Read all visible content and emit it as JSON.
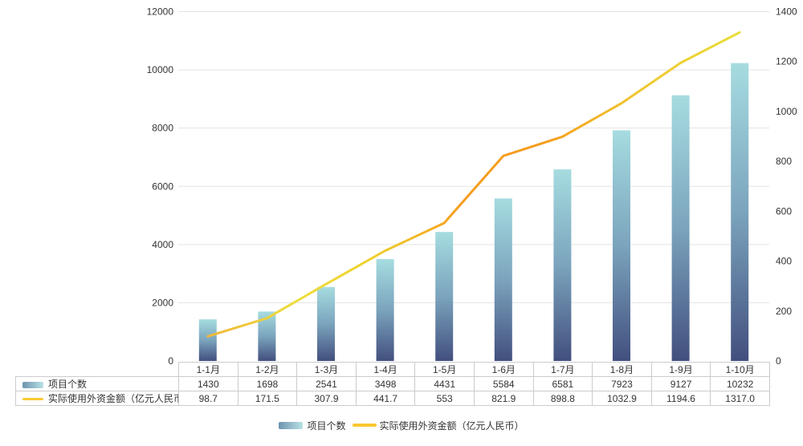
{
  "chart_data": {
    "type": "bar+line",
    "categories": [
      "1-1月",
      "1-2月",
      "1-3月",
      "1-4月",
      "1-5月",
      "1-6月",
      "1-7月",
      "1-8月",
      "1-9月",
      "1-10月"
    ],
    "series": [
      {
        "name": "项目个数",
        "type": "bar",
        "axis": "left",
        "values": [
          1430,
          1698,
          2541,
          3498,
          4431,
          5584,
          6581,
          7923,
          9127,
          10232
        ],
        "labels": [
          "1430",
          "1698",
          "2541",
          "3498",
          "4431",
          "5584",
          "6581",
          "7923",
          "9127",
          "10232"
        ]
      },
      {
        "name": "实际使用外资金额（亿元人民币）",
        "type": "line",
        "axis": "right",
        "values": [
          98.7,
          171.5,
          307.9,
          441.7,
          553,
          821.9,
          898.8,
          1032.9,
          1194.6,
          1317.0
        ],
        "labels": [
          "98.7",
          "171.5",
          "307.9",
          "441.7",
          "553",
          "821.9",
          "898.8",
          "1032.9",
          "1194.6",
          "1317.0"
        ]
      }
    ],
    "left_axis": {
      "min": 0,
      "max": 12000,
      "step": 2000,
      "tick_labels": [
        "0",
        "2000",
        "4000",
        "6000",
        "8000",
        "10000",
        "12000"
      ]
    },
    "right_axis": {
      "min": 0,
      "max": 1400,
      "step": 200,
      "tick_labels": [
        "0",
        "200",
        "400",
        "600",
        "800",
        "1000",
        "1200",
        "1400"
      ]
    },
    "grid": true,
    "legend_position": "bottom",
    "colors": {
      "bar_gradient": [
        {
          "offset": 0,
          "color": "#A6DCE0"
        },
        {
          "offset": 0.5,
          "color": "#7BA4BD"
        },
        {
          "offset": 1,
          "color": "#424F7E"
        }
      ],
      "line_gradient": [
        {
          "offset": 0,
          "color": "#F2A93C"
        },
        {
          "offset": 0.2,
          "color": "#EDDE3A"
        },
        {
          "offset": 0.33,
          "color": "#EFD02F"
        },
        {
          "offset": 0.48,
          "color": "#F59D1E"
        },
        {
          "offset": 0.62,
          "color": "#F59D1E"
        },
        {
          "offset": 0.78,
          "color": "#EFC72F"
        },
        {
          "offset": 1,
          "color": "#E8E43D"
        }
      ],
      "legend_bar_left": "#6E94B0",
      "legend_bar_right": "#B7E2E4",
      "legend_line": "#FAC832",
      "grid_line": "#E3E3E3",
      "axis_text": "#333333",
      "table_border": "#CCCCCC",
      "table_text": "#333333"
    }
  }
}
